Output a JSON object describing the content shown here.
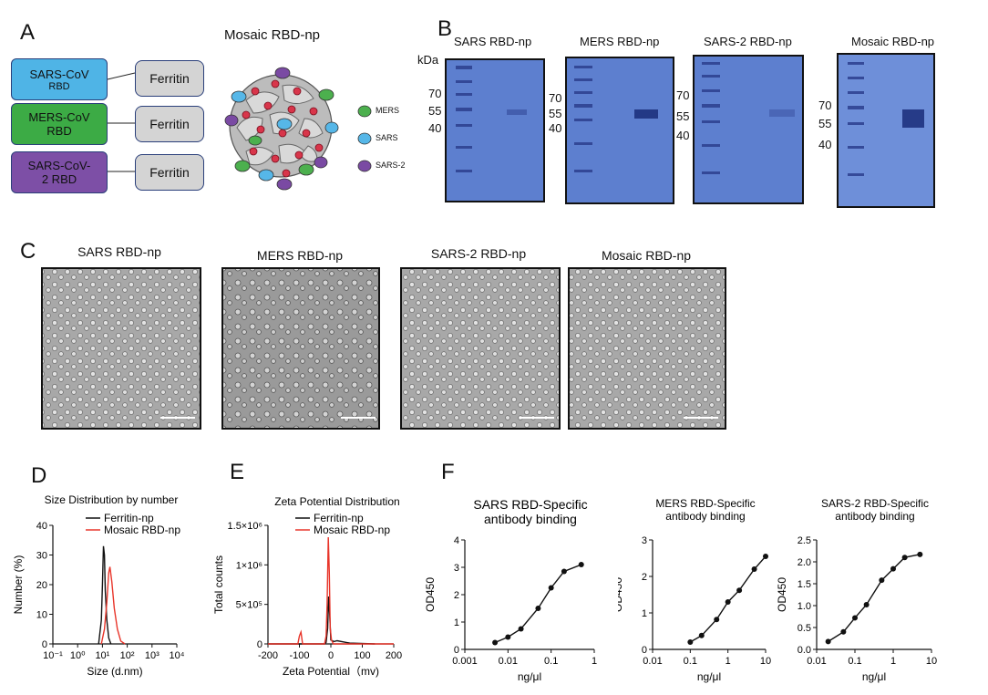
{
  "panel_letters": {
    "a": "A",
    "b": "B",
    "c": "C",
    "d": "D",
    "e": "E",
    "f": "F"
  },
  "panelA": {
    "title": "Mosaic RBD-np",
    "constructs": [
      {
        "rbd_line1": "SARS-CoV",
        "rbd_line2": "RBD",
        "color": "#4fb4e6",
        "ferritin": "Ferritin"
      },
      {
        "rbd_line1": "MERS-CoV",
        "rbd_line2": "RBD",
        "color": "#3cab45",
        "ferritin": "Ferritin"
      },
      {
        "rbd_line1": "SARS-CoV-",
        "rbd_line2": "2 RBD",
        "color": "#7d4fa6",
        "ferritin": "Ferritin"
      }
    ],
    "legend": [
      {
        "label": "MERS",
        "color": "#4cb04e"
      },
      {
        "label": "SARS",
        "color": "#56b7e8"
      },
      {
        "label": "SARS-2",
        "color": "#7a4aa3"
      }
    ]
  },
  "panelB": {
    "kda_label": "kDa",
    "gels": [
      {
        "title": "SARS RBD-np",
        "markers": [
          "70",
          "55",
          "40"
        ]
      },
      {
        "title": "MERS RBD-np",
        "markers": [
          "70",
          "55",
          "40"
        ]
      },
      {
        "title": "SARS-2 RBD-np",
        "markers": [
          "70",
          "55",
          "40"
        ]
      },
      {
        "title": "Mosaic RBD-np",
        "markers": [
          "70",
          "55",
          "40"
        ]
      }
    ]
  },
  "panelC": {
    "images": [
      {
        "title": "SARS RBD-np"
      },
      {
        "title": "MERS RBD-np"
      },
      {
        "title": "SARS-2 RBD-np"
      },
      {
        "title": "Mosaic RBD-np"
      }
    ]
  },
  "colors": {
    "black": "#111111",
    "red": "#e8352a"
  },
  "chart_data": [
    {
      "id": "D",
      "type": "line",
      "title": "Size Distribution by number",
      "xlabel": "Size (d.nm)",
      "ylabel": "Number (%)",
      "xscale": "log",
      "xlim": [
        0.1,
        10000
      ],
      "ylim": [
        0,
        40
      ],
      "xticks": [
        "10⁻¹",
        "10⁰",
        "10¹",
        "10²",
        "10³",
        "10⁴"
      ],
      "yticks": [
        "0",
        "10",
        "20",
        "30",
        "40"
      ],
      "legend_position": "top-right",
      "series": [
        {
          "name": "Ferritin-np",
          "color": "#111111",
          "x": [
            7,
            9,
            10,
            11,
            12,
            13,
            15,
            18,
            22
          ],
          "y": [
            0,
            8,
            20,
            33,
            30,
            18,
            8,
            2,
            0
          ]
        },
        {
          "name": "Mosaic RBD-np",
          "color": "#e8352a",
          "x": [
            9,
            12,
            15,
            18,
            20,
            24,
            30,
            40,
            55,
            80
          ],
          "y": [
            0,
            5,
            14,
            24,
            26,
            21,
            12,
            5,
            1,
            0
          ]
        }
      ]
    },
    {
      "id": "E",
      "type": "line",
      "title": "Zeta Potential  Distribution",
      "xlabel": "Zeta Potential（mv)",
      "ylabel": "Total counts",
      "xlim": [
        -200,
        200
      ],
      "ylim": [
        0,
        1500000
      ],
      "xticks": [
        "-200",
        "-100",
        "0",
        "100",
        "200"
      ],
      "yticks": [
        "0",
        "5×10⁵",
        "1×10⁶",
        "1.5×10⁶"
      ],
      "legend_position": "top-right",
      "series": [
        {
          "name": "Ferritin-np",
          "color": "#111111",
          "x": [
            -200,
            -20,
            -15,
            -10,
            -7,
            -4,
            0,
            10,
            20,
            60,
            140
          ],
          "y": [
            0,
            0,
            20000,
            200000,
            600000,
            400000,
            50000,
            30000,
            40000,
            10000,
            0
          ]
        },
        {
          "name": "Mosaic RBD-np",
          "color": "#e8352a",
          "x": [
            -200,
            -105,
            -100,
            -95,
            -90,
            -20,
            -15,
            -12,
            -8,
            -5,
            -2,
            2,
            8,
            200
          ],
          "y": [
            0,
            0,
            100000,
            150000,
            0,
            0,
            100000,
            500000,
            1350000,
            900000,
            200000,
            50000,
            0,
            0
          ]
        }
      ]
    },
    {
      "id": "F1",
      "type": "line",
      "title": "SARS RBD-Specific antibody binding",
      "xlabel": "ng/μl",
      "ylabel": "OD450",
      "xscale": "log",
      "xlim": [
        0.001,
        1
      ],
      "ylim": [
        0,
        4
      ],
      "xticks": [
        "0.001",
        "0.01",
        "0.1",
        "1"
      ],
      "yticks": [
        "0",
        "1",
        "2",
        "3",
        "4"
      ],
      "series": [
        {
          "color": "#111111",
          "x": [
            0.005,
            0.01,
            0.02,
            0.05,
            0.1,
            0.2,
            0.5
          ],
          "y": [
            0.25,
            0.45,
            0.75,
            1.5,
            2.25,
            2.85,
            3.1
          ]
        }
      ]
    },
    {
      "id": "F2",
      "type": "line",
      "title": "MERS RBD-Specific antibody binding",
      "xlabel": "ng/μl",
      "ylabel": "OD450",
      "xscale": "log",
      "xlim": [
        0.01,
        10
      ],
      "ylim": [
        0,
        3
      ],
      "xticks": [
        "0.01",
        "0.1",
        "1",
        "10"
      ],
      "yticks": [
        "0",
        "1",
        "2",
        "3"
      ],
      "series": [
        {
          "color": "#111111",
          "x": [
            0.1,
            0.2,
            0.5,
            1,
            2,
            5,
            10
          ],
          "y": [
            0.2,
            0.38,
            0.82,
            1.3,
            1.62,
            2.2,
            2.55
          ]
        }
      ]
    },
    {
      "id": "F3",
      "type": "line",
      "title": "SARS-2 RBD-Specific antibody binding",
      "xlabel": "ng/μl",
      "ylabel": "OD450",
      "xscale": "log",
      "xlim": [
        0.01,
        10
      ],
      "ylim": [
        0,
        2.5
      ],
      "xticks": [
        "0.01",
        "0.1",
        "1",
        "10"
      ],
      "yticks": [
        "0.0",
        "0.5",
        "1.0",
        "1.5",
        "2.0",
        "2.5"
      ],
      "series": [
        {
          "color": "#111111",
          "x": [
            0.02,
            0.05,
            0.1,
            0.2,
            0.5,
            1,
            2,
            5
          ],
          "y": [
            0.18,
            0.4,
            0.72,
            1.02,
            1.58,
            1.84,
            2.1,
            2.17
          ]
        }
      ]
    }
  ]
}
